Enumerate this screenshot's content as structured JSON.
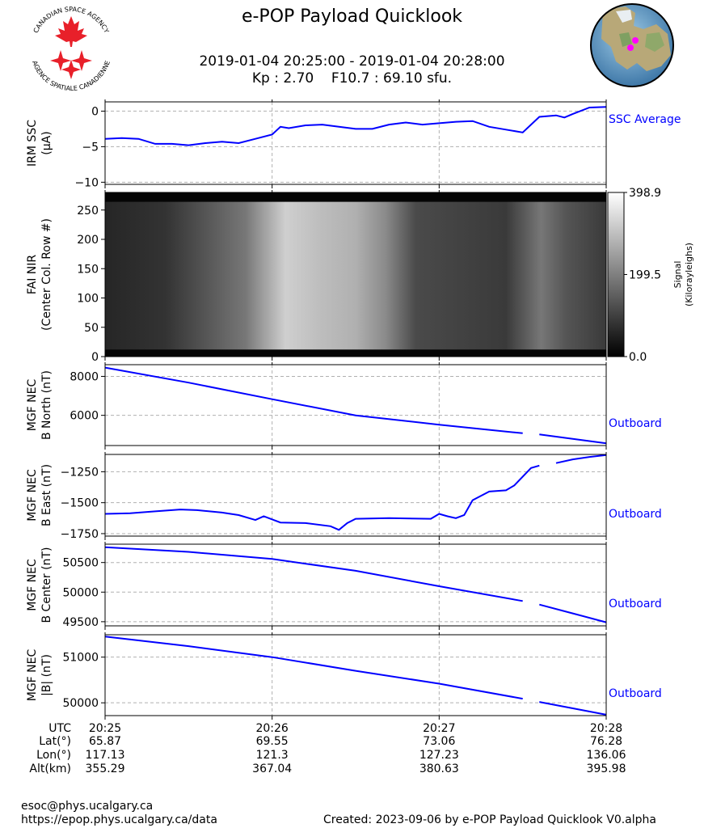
{
  "header": {
    "title": "e-POP Payload Quicklook",
    "time_range": "2019-01-04 20:25:00 - 2019-01-04 20:28:00",
    "indices": "Kp : 2.70    F10.7 : 69.10 sfu.",
    "logo_text_top": "CANADIAN SPACE AGENCY",
    "logo_text_bottom": "AGENCE SPATIALE CANADIENNE"
  },
  "colors": {
    "trace": "#0000ff",
    "grid": "#b0b0b0",
    "marker": "#ff00ff",
    "logo": "#e8202a"
  },
  "chart_data": [
    {
      "type": "line",
      "ylabel": [
        "IRM SSC",
        "(µA)"
      ],
      "ylim": [
        -10.3,
        1.3
      ],
      "yticks": [
        0,
        -5,
        -10
      ],
      "ytick_labels": [
        "0",
        "−5",
        "−10"
      ],
      "legend": "SSC Average",
      "x": [
        0,
        0.1,
        0.2,
        0.3,
        0.4,
        0.5,
        0.6,
        0.7,
        0.8,
        0.9,
        1.0,
        1.05,
        1.1,
        1.2,
        1.3,
        1.4,
        1.5,
        1.6,
        1.7,
        1.8,
        1.9,
        2.0,
        2.1,
        2.2,
        2.3,
        2.4,
        2.5,
        2.6,
        2.7,
        2.75,
        2.8,
        2.9,
        3.0
      ],
      "y": [
        -3.9,
        -3.8,
        -3.9,
        -4.6,
        -4.6,
        -4.8,
        -4.5,
        -4.3,
        -4.5,
        -3.9,
        -3.3,
        -2.2,
        -2.4,
        -2.0,
        -1.9,
        -2.2,
        -2.5,
        -2.5,
        -1.9,
        -1.6,
        -1.9,
        -1.7,
        -1.5,
        -1.4,
        -2.2,
        -2.6,
        -3.0,
        -0.8,
        -0.6,
        -0.9,
        -0.4,
        0.5,
        0.6
      ]
    },
    {
      "type": "heatmap",
      "ylabel": [
        "FAI NIR",
        "(Center Col. Row #)"
      ],
      "ylim": [
        0,
        280
      ],
      "yticks": [
        0,
        50,
        100,
        150,
        200,
        250
      ],
      "ytick_labels": [
        "0",
        "50",
        "100",
        "150",
        "200",
        "250"
      ],
      "colorbar_label": [
        "Signal",
        "(Kilorayleighs)"
      ],
      "colorbar_ticks": [
        "398.9",
        "199.5",
        "0.0"
      ],
      "colorbar_values": [
        398.9,
        199.5,
        0.0
      ]
    },
    {
      "type": "line",
      "ylabel": [
        "MGF NEC",
        "B North (nT)"
      ],
      "ylim": [
        4450,
        8600
      ],
      "yticks": [
        8000,
        6000
      ],
      "ytick_labels": [
        "8000",
        "6000"
      ],
      "legend": "Outboard",
      "x": [
        0,
        0.5,
        1.0,
        1.5,
        2.0,
        2.5,
        2.55,
        2.6,
        3.0
      ],
      "y": [
        8450,
        7680,
        6830,
        6000,
        5520,
        5080,
        null,
        5020,
        4560
      ]
    },
    {
      "type": "line",
      "ylabel": [
        "MGF NEC",
        "B East (nT)"
      ],
      "ylim": [
        -1770,
        -1110
      ],
      "yticks": [
        -1250,
        -1500,
        -1750
      ],
      "ytick_labels": [
        "−1250",
        "−1500",
        "−1750"
      ],
      "legend": "Outboard",
      "x": [
        0,
        0.15,
        0.3,
        0.45,
        0.55,
        0.7,
        0.8,
        0.9,
        0.95,
        1.05,
        1.2,
        1.35,
        1.4,
        1.45,
        1.5,
        1.7,
        1.95,
        2.0,
        2.05,
        2.1,
        2.15,
        2.2,
        2.3,
        2.4,
        2.45,
        2.55,
        2.6,
        2.65,
        2.7,
        2.8,
        2.9,
        3.0
      ],
      "y": [
        -1590,
        -1585,
        -1570,
        -1555,
        -1560,
        -1580,
        -1600,
        -1640,
        -1610,
        -1660,
        -1665,
        -1690,
        -1720,
        -1665,
        -1630,
        -1625,
        -1630,
        -1590,
        -1610,
        -1625,
        -1600,
        -1480,
        -1410,
        -1400,
        -1360,
        -1220,
        -1200,
        null,
        -1180,
        -1150,
        -1130,
        -1115
      ]
    },
    {
      "type": "line",
      "ylabel": [
        "MGF NEC",
        "B Center (nT)"
      ],
      "ylim": [
        49430,
        50810
      ],
      "yticks": [
        50500,
        50000,
        49500
      ],
      "ytick_labels": [
        "50500",
        "50000",
        "49500"
      ],
      "legend": "Outboard",
      "x": [
        0,
        0.5,
        1.0,
        1.5,
        2.0,
        2.5,
        2.55,
        2.6,
        2.8,
        3.0
      ],
      "y": [
        50760,
        50680,
        50560,
        50360,
        50100,
        49850,
        null,
        49790,
        49640,
        49490
      ]
    },
    {
      "type": "line",
      "ylabel": [
        "MGF NEC",
        "|B| (nT)"
      ],
      "ylim": [
        49720,
        51490
      ],
      "yticks": [
        51000,
        50000
      ],
      "ytick_labels": [
        "51000",
        "50000"
      ],
      "legend": "Outboard",
      "x": [
        0,
        0.5,
        1.0,
        1.5,
        2.0,
        2.5,
        2.55,
        2.6,
        2.8,
        3.0
      ],
      "y": [
        51450,
        51240,
        51000,
        50700,
        50420,
        50090,
        null,
        50020,
        49880,
        49740
      ]
    }
  ],
  "axis": {
    "row_labels": [
      "UTC",
      "Lat(°)",
      "Lon(°)",
      "Alt(km)"
    ],
    "ticks": [
      {
        "utc": "20:25",
        "lat": "65.87",
        "lon": "117.13",
        "alt": "355.29"
      },
      {
        "utc": "20:26",
        "lat": "69.55",
        "lon": "121.3",
        "alt": "367.04"
      },
      {
        "utc": "20:27",
        "lat": "73.06",
        "lon": "127.23",
        "alt": "380.63"
      },
      {
        "utc": "20:28",
        "lat": "76.28",
        "lon": "136.06",
        "alt": "395.98"
      }
    ]
  },
  "footer": {
    "email": "esoc@phys.ucalgary.ca",
    "url": "https://epop.phys.ucalgary.ca/data",
    "created": "Created: 2023-09-06 by e-POP Payload Quicklook V0.alpha"
  }
}
